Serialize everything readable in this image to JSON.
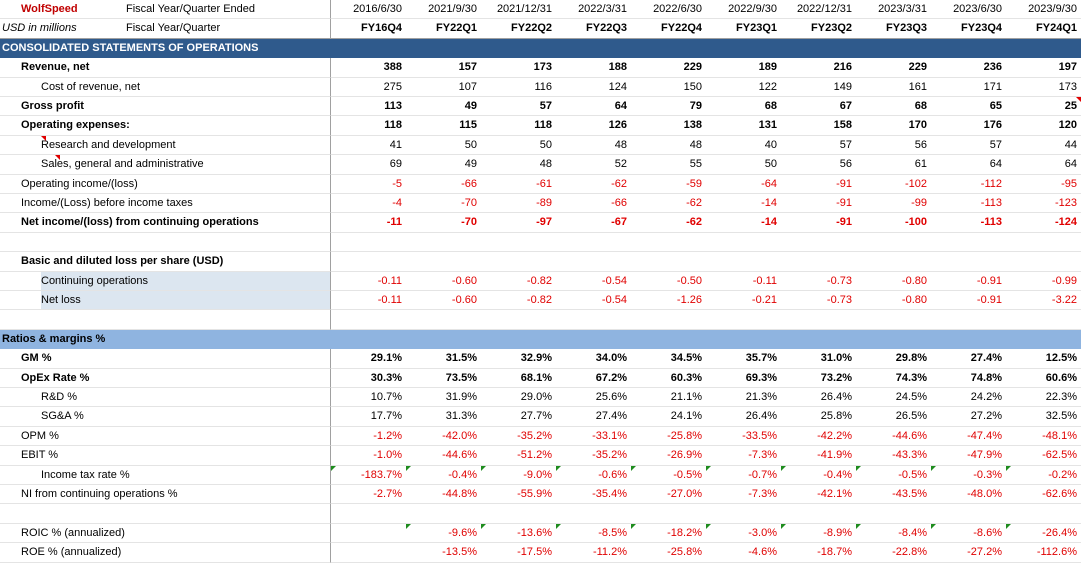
{
  "header": {
    "company": "WolfSpeed",
    "units": "USD in millions",
    "period_end_label": "Fiscal Year/Quarter Ended",
    "fiscal_label": "Fiscal Year/Quarter",
    "dates": [
      "2016/6/30",
      "2021/9/30",
      "2021/12/31",
      "2022/3/31",
      "2022/6/30",
      "2022/9/30",
      "2022/12/31",
      "2023/3/31",
      "2023/6/30",
      "2023/9/30"
    ],
    "periods": [
      "FY16Q4",
      "FY22Q1",
      "FY22Q2",
      "FY22Q3",
      "FY22Q4",
      "FY23Q1",
      "FY23Q2",
      "FY23Q3",
      "FY23Q4",
      "FY24Q1"
    ]
  },
  "sections": {
    "operations": "CONSOLIDATED STATEMENTS OF OPERATIONS",
    "ratios": "Ratios & margins %"
  },
  "rows": {
    "revenue": {
      "label": "Revenue, net",
      "values": [
        "388",
        "157",
        "173",
        "188",
        "229",
        "189",
        "216",
        "229",
        "236",
        "197"
      ]
    },
    "cost_of_revenue": {
      "label": "Cost of revenue, net",
      "values": [
        "275",
        "107",
        "116",
        "124",
        "150",
        "122",
        "149",
        "161",
        "171",
        "173"
      ]
    },
    "gross_profit": {
      "label": "Gross profit",
      "values": [
        "113",
        "49",
        "57",
        "64",
        "79",
        "68",
        "67",
        "68",
        "65",
        "25"
      ]
    },
    "opex": {
      "label": "Operating expenses:",
      "values": [
        "118",
        "115",
        "118",
        "126",
        "138",
        "131",
        "158",
        "170",
        "176",
        "120"
      ]
    },
    "rnd": {
      "label": "Research and development",
      "values": [
        "41",
        "50",
        "50",
        "48",
        "48",
        "40",
        "57",
        "56",
        "57",
        "44"
      ]
    },
    "sga": {
      "label": "Sales, general and administrative",
      "values": [
        "69",
        "49",
        "48",
        "52",
        "55",
        "50",
        "56",
        "61",
        "64",
        "64"
      ]
    },
    "operating_income": {
      "label": "Operating income/(loss)",
      "values": [
        "-5",
        "-66",
        "-61",
        "-62",
        "-59",
        "-64",
        "-91",
        "-102",
        "-112",
        "-95"
      ]
    },
    "pretax_income": {
      "label": "Income/(Loss) before income taxes",
      "values": [
        "-4",
        "-70",
        "-89",
        "-66",
        "-62",
        "-14",
        "-91",
        "-99",
        "-113",
        "-123"
      ]
    },
    "net_income": {
      "label": "Net income/(loss) from continuing operations",
      "values": [
        "-11",
        "-70",
        "-97",
        "-67",
        "-62",
        "-14",
        "-91",
        "-100",
        "-113",
        "-124"
      ]
    },
    "eps_header": {
      "label": "Basic and diluted loss per share (USD)"
    },
    "eps_continuing": {
      "label": "Continuing operations",
      "values": [
        "-0.11",
        "-0.60",
        "-0.82",
        "-0.54",
        "-0.50",
        "-0.11",
        "-0.73",
        "-0.80",
        "-0.91",
        "-0.99"
      ]
    },
    "eps_net": {
      "label": "Net loss",
      "values": [
        "-0.11",
        "-0.60",
        "-0.82",
        "-0.54",
        "-1.26",
        "-0.21",
        "-0.73",
        "-0.80",
        "-0.91",
        "-3.22"
      ]
    },
    "gm": {
      "label": "GM %",
      "values": [
        "29.1%",
        "31.5%",
        "32.9%",
        "34.0%",
        "34.5%",
        "35.7%",
        "31.0%",
        "29.8%",
        "27.4%",
        "12.5%"
      ]
    },
    "opex_rate": {
      "label": "OpEx Rate %",
      "values": [
        "30.3%",
        "73.5%",
        "68.1%",
        "67.2%",
        "60.3%",
        "69.3%",
        "73.2%",
        "74.3%",
        "74.8%",
        "60.6%"
      ]
    },
    "rnd_pct": {
      "label": "R&D %",
      "values": [
        "10.7%",
        "31.9%",
        "29.0%",
        "25.6%",
        "21.1%",
        "21.3%",
        "26.4%",
        "24.5%",
        "24.2%",
        "22.3%"
      ]
    },
    "sga_pct": {
      "label": "SG&A %",
      "values": [
        "17.7%",
        "31.3%",
        "27.7%",
        "27.4%",
        "24.1%",
        "26.4%",
        "25.8%",
        "26.5%",
        "27.2%",
        "32.5%"
      ]
    },
    "opm": {
      "label": "OPM %",
      "values": [
        "-1.2%",
        "-42.0%",
        "-35.2%",
        "-33.1%",
        "-25.8%",
        "-33.5%",
        "-42.2%",
        "-44.6%",
        "-47.4%",
        "-48.1%"
      ]
    },
    "ebit": {
      "label": "EBIT %",
      "values": [
        "-1.0%",
        "-44.6%",
        "-51.2%",
        "-35.2%",
        "-26.9%",
        "-7.3%",
        "-41.9%",
        "-43.3%",
        "-47.9%",
        "-62.5%"
      ]
    },
    "tax_rate": {
      "label": "Income tax rate %",
      "values": [
        "-183.7%",
        "-0.4%",
        "-9.0%",
        "-0.6%",
        "-0.5%",
        "-0.7%",
        "-0.4%",
        "-0.5%",
        "-0.3%",
        "-0.2%"
      ]
    },
    "ni_cont_pct": {
      "label": "NI from continuing operations %",
      "values": [
        "-2.7%",
        "-44.8%",
        "-55.9%",
        "-35.4%",
        "-27.0%",
        "-7.3%",
        "-42.1%",
        "-43.5%",
        "-48.0%",
        "-62.6%"
      ]
    },
    "roic": {
      "label": "ROIC % (annualized)",
      "values": [
        "",
        "-9.6%",
        "-13.6%",
        "-8.5%",
        "-18.2%",
        "-3.0%",
        "-8.9%",
        "-8.4%",
        "-8.6%",
        "-26.4%"
      ]
    },
    "roe": {
      "label": "ROE % (annualized)",
      "values": [
        "",
        "-13.5%",
        "-17.5%",
        "-11.2%",
        "-25.8%",
        "-4.6%",
        "-18.7%",
        "-22.8%",
        "-27.2%",
        "-112.6%"
      ]
    }
  },
  "colors": {
    "section_dark": "#2f5a8c",
    "section_light": "#8fb4e0",
    "negative": "#e00000",
    "brand": "#c00000",
    "label_shade": "#dce6f0"
  }
}
